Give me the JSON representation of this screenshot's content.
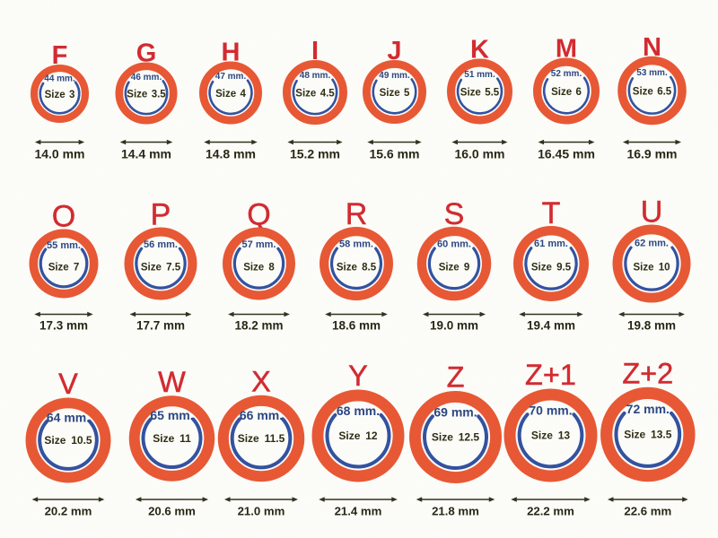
{
  "page": {
    "background": "#fdfdfa",
    "description": "Ring size chart with three rows of rings showing UK letter sizes, circumference, US size and inner diameter"
  },
  "colors": {
    "ring_orange": "#e8522e",
    "circle_blue": "#2b4c9e",
    "letter_red": "#d2232a",
    "mm_text_navy": "#24407f",
    "size_text": "#26260c",
    "diameter_label": "#1e1e0c",
    "arrow": "#2a2a18"
  },
  "chart_data": {
    "type": "table",
    "columns": [
      "uk_letter",
      "circumference",
      "us_size",
      "inner_diameter"
    ],
    "rows": [
      [
        {
          "letter": "F",
          "circumference": "44 mm.",
          "size": "Size 3",
          "diameter": "14.0 mm"
        },
        {
          "letter": "G",
          "circumference": "46 mm.",
          "size": "Size 3.5",
          "diameter": "14.4 mm"
        },
        {
          "letter": "H",
          "circumference": "47 mm.",
          "size": "Size 4",
          "diameter": "14.8 mm"
        },
        {
          "letter": "I",
          "circumference": "48 mm.",
          "size": "Size 4.5",
          "diameter": "15.2 mm"
        },
        {
          "letter": "J",
          "circumference": "49 mm.",
          "size": "Size 5",
          "diameter": "15.6 mm"
        },
        {
          "letter": "K",
          "circumference": "51 mm.",
          "size": "Size 5.5",
          "diameter": "16.0 mm"
        },
        {
          "letter": "M",
          "circumference": "52 mm.",
          "size": "Size 6",
          "diameter": "16.45 mm"
        },
        {
          "letter": "N",
          "circumference": "53 mm.",
          "size": "Size 6.5",
          "diameter": "16.9 mm"
        }
      ],
      [
        {
          "letter": "O",
          "circumference": "55 mm.",
          "size": "Size 7",
          "diameter": "17.3 mm"
        },
        {
          "letter": "P",
          "circumference": "56 mm.",
          "size": "Size 7.5",
          "diameter": "17.7 mm"
        },
        {
          "letter": "Q",
          "circumference": "57 mm.",
          "size": "Size 8",
          "diameter": "18.2 mm"
        },
        {
          "letter": "R",
          "circumference": "58 mm.",
          "size": "Size 8.5",
          "diameter": "18.6 mm"
        },
        {
          "letter": "S",
          "circumference": "60 mm.",
          "size": "Size 9",
          "diameter": "19.0 mm"
        },
        {
          "letter": "T",
          "circumference": "61 mm.",
          "size": "Size 9.5",
          "diameter": "19.4 mm"
        },
        {
          "letter": "U",
          "circumference": "62 mm.",
          "size": "Size 10",
          "diameter": "19.8 mm"
        }
      ],
      [
        {
          "letter": "V",
          "circumference": "64 mm.",
          "size": "Size 10.5",
          "diameter": "20.2 mm"
        },
        {
          "letter": "W",
          "circumference": "65 mm.",
          "size": "Size 11",
          "diameter": "20.6 mm"
        },
        {
          "letter": "X",
          "circumference": "66 mm.",
          "size": "Size 11.5",
          "diameter": "21.0 mm"
        },
        {
          "letter": "Y",
          "circumference": "68 mm.",
          "size": "Size 12",
          "diameter": "21.4 mm"
        },
        {
          "letter": "Z",
          "circumference": "69 mm.",
          "size": "Size 12.5",
          "diameter": "21.8 mm"
        },
        {
          "letter": "Z+1",
          "circumference": "70 mm.",
          "size": "Size 13",
          "diameter": "22.2 mm"
        },
        {
          "letter": "Z+2",
          "circumference": "72 mm.",
          "size": "Size 13.5",
          "diameter": "22.6 mm"
        }
      ]
    ]
  }
}
